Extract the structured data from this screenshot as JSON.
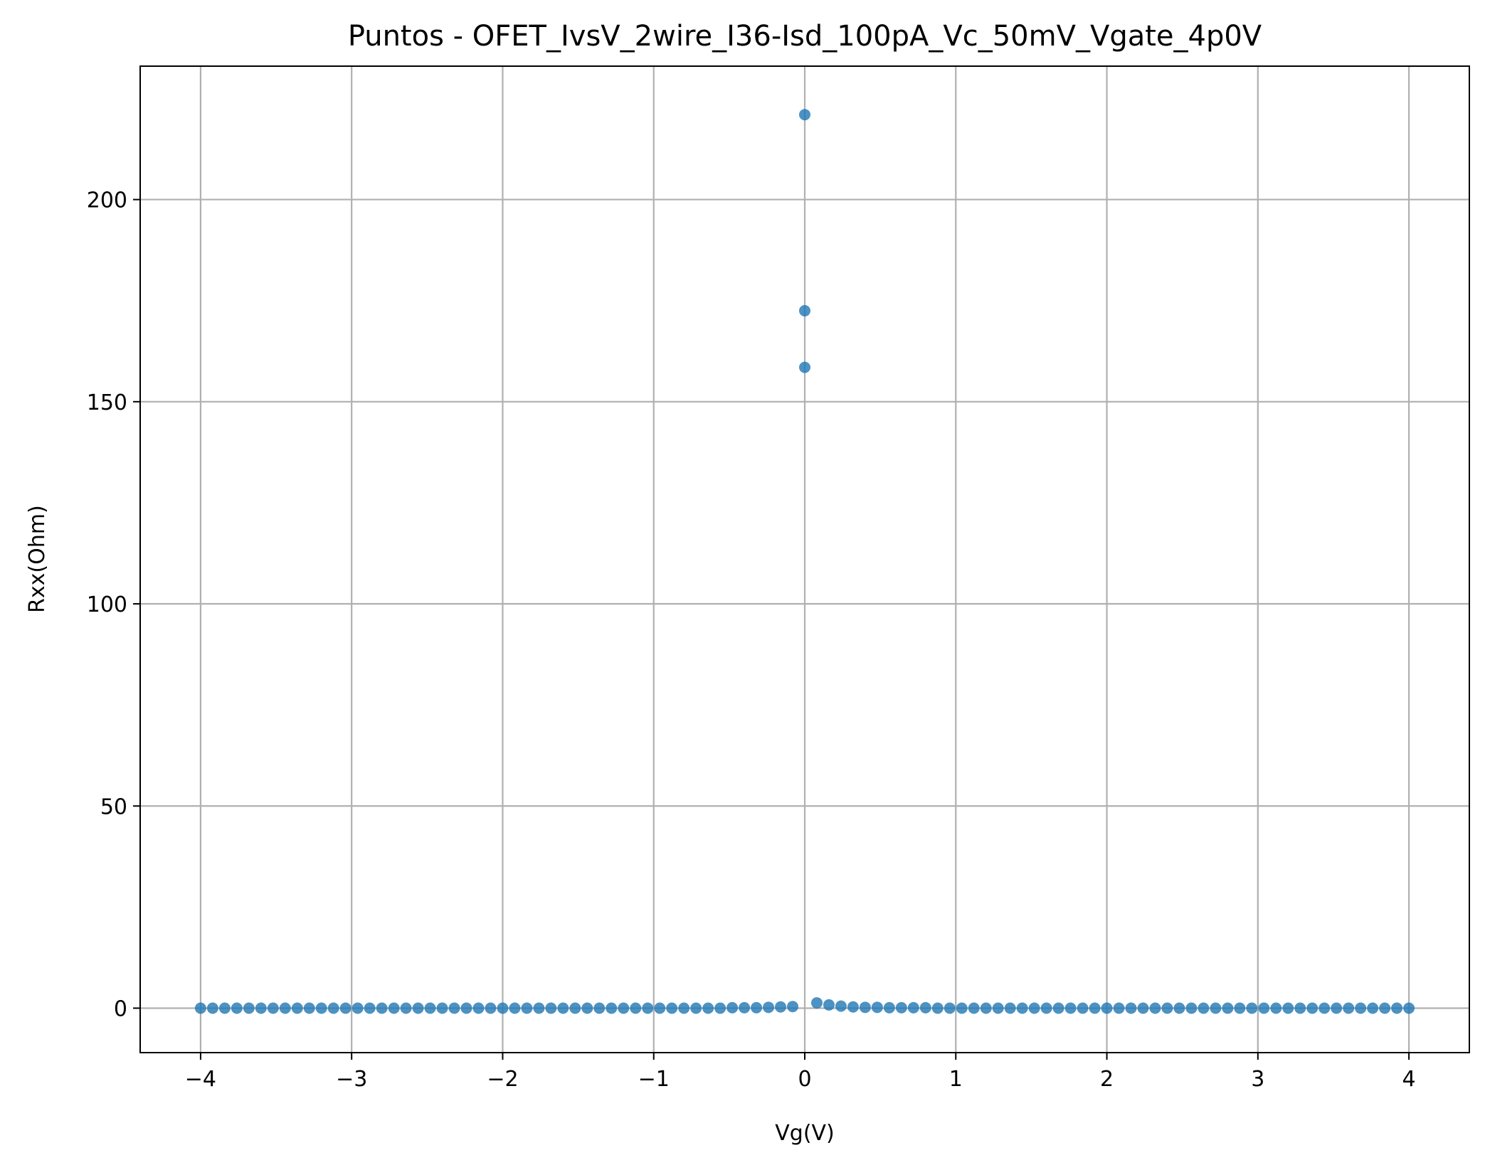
{
  "chart_data": {
    "type": "scatter",
    "title": "Puntos - OFET_IvsV_2wire_I36-Isd_100pA_Vc_50mV_Vgate_4p0V",
    "xlabel": "Vg(V)",
    "ylabel": "Rxx(Ohm)",
    "xlim": [
      -4.4,
      4.4
    ],
    "ylim": [
      -11,
      233
    ],
    "xticks": [
      -4,
      -3,
      -2,
      -1,
      0,
      1,
      2,
      3,
      4
    ],
    "xtick_labels": [
      "−4",
      "−3",
      "−2",
      "−1",
      "0",
      "1",
      "2",
      "3",
      "4"
    ],
    "yticks": [
      0,
      50,
      100,
      150,
      200
    ],
    "ytick_labels": [
      "0",
      "50",
      "100",
      "150",
      "200"
    ],
    "grid": true,
    "marker_color": "#1f77b4",
    "series": [
      {
        "x": [
          -4.0,
          -3.92,
          -3.84,
          -3.76,
          -3.68,
          -3.6,
          -3.52,
          -3.44,
          -3.36,
          -3.28,
          -3.2,
          -3.12,
          -3.04,
          -2.96,
          -2.88,
          -2.8,
          -2.72,
          -2.64,
          -2.56,
          -2.48,
          -2.4,
          -2.32,
          -2.24,
          -2.16,
          -2.08,
          -2.0,
          -1.92,
          -1.84,
          -1.76,
          -1.68,
          -1.6,
          -1.52,
          -1.44,
          -1.36,
          -1.28,
          -1.2,
          -1.12,
          -1.04,
          -0.96,
          -0.88,
          -0.8,
          -0.72,
          -0.64,
          -0.56,
          -0.48,
          -0.4,
          -0.32,
          -0.24,
          -0.16,
          -0.08,
          0.0,
          0.0,
          0.0,
          0.08,
          0.16,
          0.24,
          0.32,
          0.4,
          0.48,
          0.56,
          0.64,
          0.72,
          0.8,
          0.88,
          0.96,
          1.04,
          1.12,
          1.2,
          1.28,
          1.36,
          1.44,
          1.52,
          1.6,
          1.68,
          1.76,
          1.84,
          1.92,
          2.0,
          2.08,
          2.16,
          2.24,
          2.32,
          2.4,
          2.48,
          2.56,
          2.64,
          2.72,
          2.8,
          2.88,
          2.96,
          3.04,
          3.12,
          3.2,
          3.28,
          3.36,
          3.44,
          3.52,
          3.6,
          3.68,
          3.76,
          3.84,
          3.92,
          4.0
        ],
        "y": [
          0,
          0,
          0,
          0,
          0,
          0,
          0,
          0,
          0,
          0,
          0,
          0,
          0,
          0,
          0,
          0,
          0,
          0,
          0,
          0,
          0,
          0,
          0,
          0,
          0,
          0,
          0,
          0,
          0,
          0,
          0,
          0,
          0,
          0,
          0,
          0,
          0,
          0,
          0,
          0,
          0,
          0,
          0,
          0,
          0.1,
          0.1,
          0.1,
          0.2,
          0.3,
          0.4,
          221,
          172.5,
          158.5,
          1.3,
          0.8,
          0.5,
          0.3,
          0.2,
          0.2,
          0.1,
          0.1,
          0.1,
          0.1,
          0,
          0,
          0,
          0,
          0,
          0,
          0,
          0,
          0,
          0,
          0,
          0,
          0,
          0,
          0,
          0,
          0,
          0,
          0,
          0,
          0,
          0,
          0,
          0,
          0,
          0,
          0,
          0,
          0,
          0,
          0,
          0,
          0,
          0,
          0,
          0,
          0,
          0,
          0,
          0
        ]
      }
    ]
  }
}
